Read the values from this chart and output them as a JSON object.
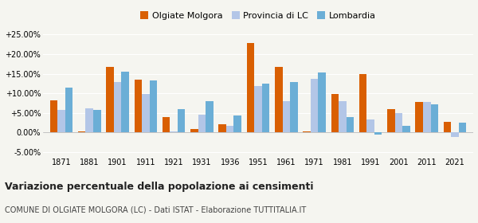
{
  "years": [
    1871,
    1881,
    1901,
    1911,
    1921,
    1931,
    1936,
    1951,
    1961,
    1971,
    1981,
    1991,
    2001,
    2011,
    2021
  ],
  "olgiate": [
    8.3,
    0.3,
    16.8,
    13.5,
    4.0,
    1.0,
    2.2,
    22.8,
    16.7,
    0.3,
    9.8,
    15.0,
    5.9,
    7.8,
    2.7
  ],
  "provincia": [
    5.8,
    6.2,
    12.8,
    9.8,
    0.4,
    4.5,
    1.8,
    11.8,
    8.0,
    13.8,
    8.0,
    3.3,
    5.0,
    7.8,
    -1.2
  ],
  "lombardia": [
    11.5,
    5.7,
    15.6,
    13.3,
    6.0,
    8.0,
    4.4,
    12.5,
    12.8,
    15.3,
    4.0,
    -0.5,
    1.8,
    7.3,
    2.5
  ],
  "color_olgiate": "#d95f02",
  "color_provincia": "#b3c6e7",
  "color_lombardia": "#6baed6",
  "title": "Variazione percentuale della popolazione ai censimenti",
  "subtitle": "COMUNE DI OLGIATE MOLGORA (LC) - Dati ISTAT - Elaborazione TUTTITALIA.IT",
  "ylim": [
    -6,
    27
  ],
  "yticks": [
    -5,
    0,
    5,
    10,
    15,
    20,
    25
  ],
  "ytick_labels": [
    "-5.00%",
    "0.00%",
    "+5.00%",
    "+10.00%",
    "+15.00%",
    "+20.00%",
    "+25.00%"
  ],
  "bg_color": "#f5f5f0",
  "legend_labels": [
    "Olgiate Molgora",
    "Provincia di LC",
    "Lombardia"
  ],
  "bar_width": 0.27
}
